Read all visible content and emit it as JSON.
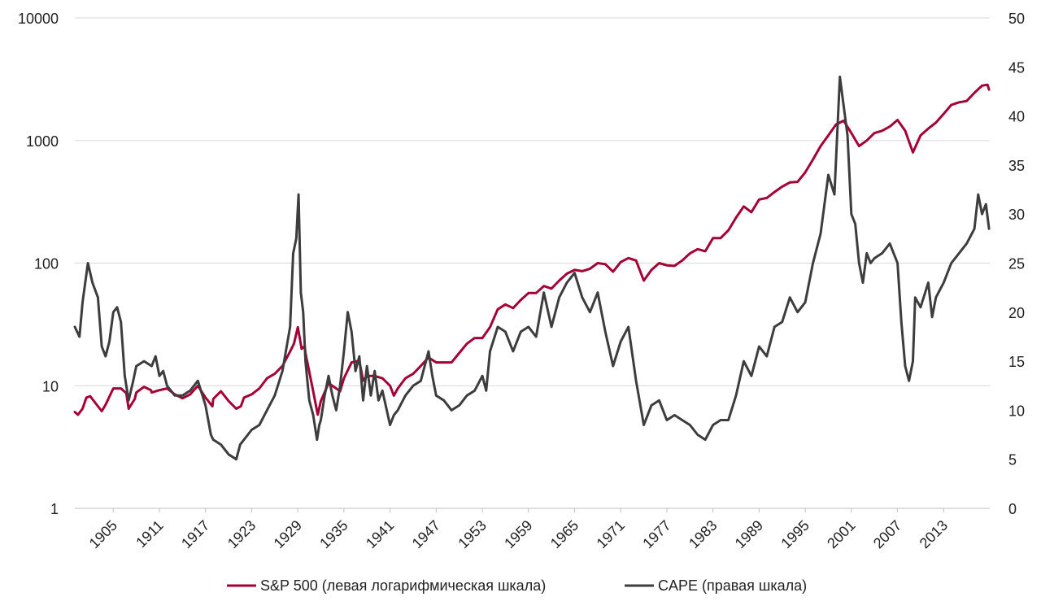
{
  "chart_data": {
    "type": "line",
    "left_axis": {
      "scale": "log",
      "range": [
        1,
        10000
      ],
      "ticks": [
        1,
        10,
        100,
        1000,
        10000
      ],
      "tick_labels": [
        "1",
        "10",
        "100",
        "1000",
        "10000"
      ]
    },
    "right_axis": {
      "scale": "linear",
      "range": [
        0,
        50
      ],
      "ticks": [
        0,
        5,
        10,
        15,
        20,
        25,
        30,
        35,
        40,
        45,
        50
      ],
      "tick_labels": [
        "0",
        "5",
        "10",
        "15",
        "20",
        "25",
        "30",
        "35",
        "40",
        "45",
        "50"
      ]
    },
    "x_axis": {
      "range": [
        1900,
        2019
      ],
      "tick_labels": [
        "1905",
        "1911",
        "1917",
        "1923",
        "1929",
        "1935",
        "1941",
        "1947",
        "1953",
        "1959",
        "1965",
        "1971",
        "1977",
        "1983",
        "1989",
        "1995",
        "2001",
        "2007",
        "2013"
      ]
    },
    "grid": "horizontal",
    "legend_position": "bottom",
    "series": [
      {
        "name": "S&P 500 (левая логарифмическая шкала)",
        "axis": "left",
        "color": "#A50034",
        "x": [
          1900,
          1900.4,
          1901,
          1901.5,
          1902,
          1903,
          1903.5,
          1904,
          1905,
          1906,
          1906.7,
          1907,
          1907.8,
          1908,
          1909,
          1909.9,
          1910,
          1911,
          1912,
          1913,
          1914,
          1915,
          1916,
          1917,
          1917.9,
          1918,
          1919,
          1920,
          1921,
          1921.6,
          1922,
          1923,
          1924,
          1925,
          1926,
          1927,
          1928,
          1928.5,
          1929,
          1929.5,
          1929.9,
          1930,
          1931,
          1931.6,
          1932,
          1933,
          1934,
          1934.5,
          1935,
          1936,
          1937,
          1937.5,
          1938,
          1939,
          1940,
          1941,
          1941.5,
          1942,
          1943,
          1944,
          1945,
          1946,
          1947,
          1948,
          1949,
          1950,
          1951,
          1952,
          1953,
          1954,
          1955,
          1956,
          1957,
          1958,
          1959,
          1960,
          1961,
          1962,
          1963,
          1964,
          1965,
          1966,
          1967,
          1968,
          1969,
          1970,
          1971,
          1972,
          1973,
          1974,
          1975,
          1976,
          1977,
          1978,
          1979,
          1980,
          1981,
          1982,
          1983,
          1984,
          1985,
          1986,
          1987,
          1988,
          1989,
          1990,
          1991,
          1992,
          1993,
          1994,
          1995,
          1996,
          1997,
          1998,
          1999,
          2000,
          2001,
          2002,
          2003,
          2004,
          2005,
          2006,
          2007,
          2008,
          2009,
          2010,
          2011,
          2012,
          2013,
          2014,
          2015,
          2016,
          2017,
          2018,
          2018.7,
          2018.9
        ],
        "values": [
          6.1,
          5.8,
          6.5,
          8.0,
          8.2,
          6.8,
          6.2,
          7.0,
          9.5,
          9.5,
          8.7,
          6.5,
          7.8,
          8.8,
          9.8,
          9.2,
          8.8,
          9.2,
          9.5,
          8.5,
          7.9,
          8.5,
          10.0,
          8.0,
          6.8,
          7.8,
          9.0,
          7.5,
          6.5,
          6.8,
          8.0,
          8.5,
          9.5,
          11.5,
          12.5,
          14.5,
          19.0,
          22.0,
          30.0,
          20.0,
          21.0,
          18.5,
          9.0,
          5.8,
          7.5,
          10.5,
          9.5,
          9.0,
          11.5,
          15.5,
          16.0,
          11.0,
          12.0,
          12.0,
          11.5,
          10.0,
          8.3,
          9.5,
          11.5,
          12.5,
          14.5,
          17.0,
          15.5,
          15.5,
          15.5,
          18.5,
          22.0,
          24.5,
          24.5,
          30.0,
          42.0,
          46.0,
          43.0,
          50.0,
          57.0,
          57.0,
          65.0,
          62.0,
          72.0,
          82.0,
          88.0,
          86.0,
          90.0,
          100.0,
          98.0,
          85.0,
          102.0,
          110.0,
          105.0,
          72.0,
          88.0,
          100.0,
          96.0,
          95.0,
          105.0,
          120.0,
          130.0,
          125.0,
          160.0,
          160.0,
          185.0,
          235.0,
          290.0,
          260.0,
          330.0,
          340.0,
          380.0,
          420.0,
          455.0,
          460.0,
          550.0,
          700.0,
          900.0,
          1100.0,
          1350.0,
          1450.0,
          1150.0,
          900.0,
          1000.0,
          1150.0,
          1200.0,
          1300.0,
          1470.0,
          1200.0,
          800.0,
          1100.0,
          1250.0,
          1400.0,
          1650.0,
          1950.0,
          2050.0,
          2100.0,
          2450.0,
          2800.0,
          2850.0,
          2600.0
        ]
      },
      {
        "name": "CAPE (правая шкала)",
        "axis": "right",
        "color": "#3D3D3D",
        "x": [
          1900,
          1900.6,
          1901,
          1901.7,
          1902.3,
          1903,
          1903.5,
          1904,
          1904.5,
          1905,
          1905.5,
          1906,
          1906.5,
          1907,
          1907.6,
          1908,
          1909,
          1910,
          1910.5,
          1911,
          1911.5,
          1912,
          1913,
          1914,
          1915,
          1916,
          1917,
          1917.7,
          1918,
          1919,
          1920,
          1921,
          1921.5,
          1922,
          1923,
          1924,
          1925,
          1926,
          1927,
          1928,
          1928.4,
          1928.8,
          1929.1,
          1929.4,
          1929.7,
          1930,
          1930.5,
          1931,
          1931.5,
          1931.8,
          1932,
          1932.5,
          1933,
          1933.5,
          1934,
          1934.5,
          1935,
          1935.5,
          1936,
          1936.5,
          1937,
          1937.5,
          1938,
          1938.5,
          1939,
          1939.5,
          1940,
          1941,
          1941.5,
          1942,
          1943,
          1944,
          1945,
          1946,
          1946.5,
          1947,
          1948,
          1949,
          1950,
          1951,
          1952,
          1953,
          1953.5,
          1954,
          1955,
          1956,
          1957,
          1958,
          1959,
          1960,
          1961,
          1962,
          1963,
          1964,
          1965,
          1966,
          1967,
          1968,
          1969,
          1970,
          1971,
          1972,
          1973,
          1974,
          1975,
          1976,
          1977,
          1978,
          1979,
          1980,
          1981,
          1982,
          1983,
          1984,
          1985,
          1986,
          1987,
          1988,
          1989,
          1990,
          1991,
          1992,
          1993,
          1994,
          1995,
          1996,
          1997,
          1998,
          1998.8,
          1999.5,
          2000,
          2000.5,
          2001,
          2001.5,
          2002,
          2002.5,
          2003,
          2003.5,
          2004,
          2005,
          2006,
          2007,
          2007.5,
          2008,
          2008.5,
          2009,
          2009.3,
          2010,
          2011,
          2011.5,
          2012,
          2013,
          2014,
          2015,
          2016,
          2017,
          2017.5,
          2018,
          2018.5,
          2018.9
        ],
        "values": [
          18.5,
          17.5,
          21.0,
          25.0,
          23.0,
          21.5,
          16.5,
          15.5,
          17.0,
          20.0,
          20.5,
          19.0,
          13.5,
          11.0,
          13.0,
          14.5,
          15.0,
          14.5,
          15.5,
          13.5,
          14.0,
          12.5,
          11.5,
          11.5,
          12.0,
          13.0,
          10.5,
          7.5,
          7.0,
          6.5,
          5.5,
          5.0,
          6.5,
          7.0,
          8.0,
          8.5,
          10.0,
          11.5,
          14.0,
          18.5,
          26.0,
          27.5,
          32.0,
          22.0,
          20.0,
          15.0,
          11.0,
          9.5,
          7.0,
          8.5,
          9.0,
          11.5,
          13.5,
          11.5,
          10.0,
          12.5,
          16.0,
          20.0,
          18.0,
          14.0,
          15.5,
          11.0,
          14.5,
          11.5,
          14.0,
          11.0,
          12.0,
          8.5,
          9.5,
          10.0,
          11.5,
          12.5,
          13.0,
          16.0,
          13.5,
          11.5,
          11.0,
          10.0,
          10.5,
          11.5,
          12.0,
          13.5,
          12.0,
          16.0,
          18.5,
          18.0,
          16.0,
          18.0,
          18.5,
          17.5,
          22.0,
          18.5,
          21.5,
          23.0,
          24.0,
          21.5,
          20.0,
          22.0,
          18.0,
          14.5,
          17.0,
          18.5,
          13.0,
          8.5,
          10.5,
          11.0,
          9.0,
          9.5,
          9.0,
          8.5,
          7.5,
          7.0,
          8.5,
          9.0,
          9.0,
          11.5,
          15.0,
          13.5,
          16.5,
          15.5,
          18.5,
          19.0,
          21.5,
          20.0,
          21.0,
          25.0,
          28.0,
          34.0,
          32.0,
          44.0,
          41.0,
          38.0,
          30.0,
          29.0,
          25.0,
          23.0,
          26.0,
          25.0,
          25.5,
          26.0,
          27.0,
          25.0,
          19.0,
          14.5,
          13.0,
          15.0,
          21.5,
          20.5,
          23.0,
          19.5,
          21.5,
          23.0,
          25.0,
          26.0,
          27.0,
          28.5,
          32.0,
          30.0,
          31.0,
          28.5
        ]
      }
    ]
  },
  "legend": {
    "sp500_label": "S&P 500 (левая логарифмическая шкала)",
    "cape_label": "CAPE (правая шкала)"
  },
  "colors": {
    "sp500": "#A50034",
    "cape": "#3D3D3D",
    "grid": "#D9D9D9",
    "axis": "#BFBFBF"
  }
}
